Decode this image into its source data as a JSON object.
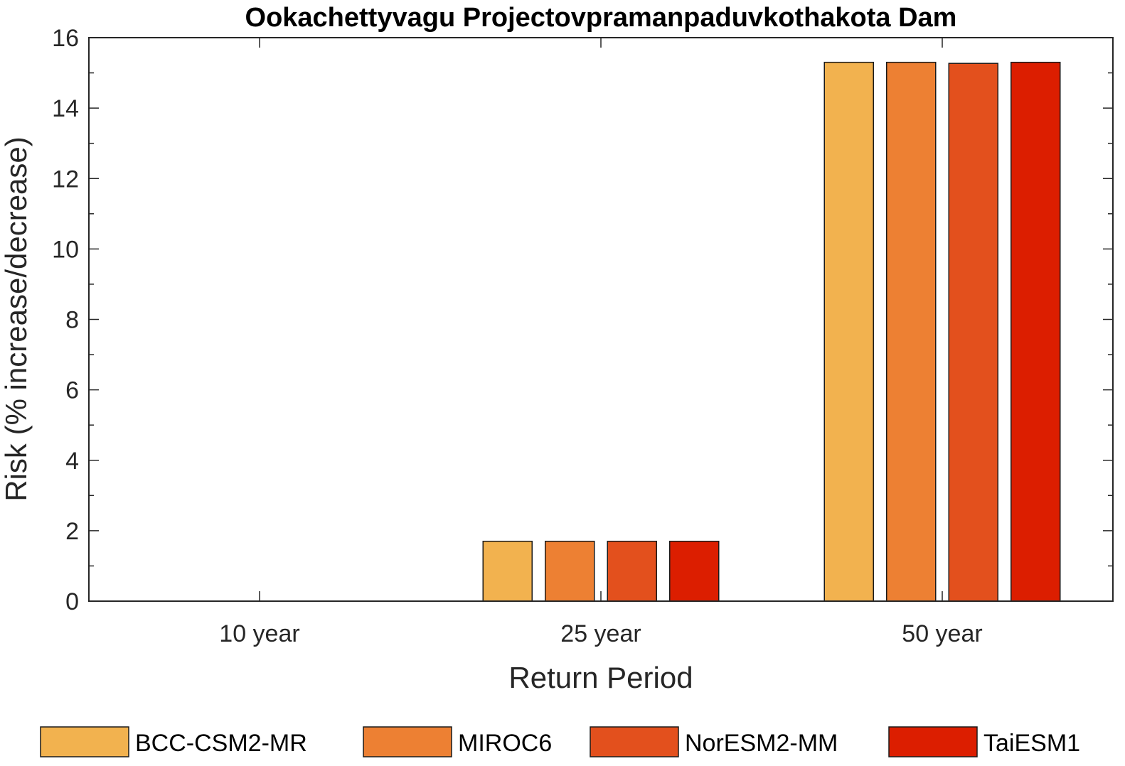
{
  "chart_data": {
    "type": "bar",
    "title": "Ookachettyvagu Projectovpramanpaduvkothakota Dam",
    "xlabel": "Return Period",
    "ylabel": "Risk (% increase/decrease)",
    "categories": [
      "10 year",
      "25 year",
      "50 year"
    ],
    "ylim": [
      0,
      16
    ],
    "yticks": [
      0,
      2,
      4,
      6,
      8,
      10,
      12,
      14,
      16
    ],
    "grid": false,
    "legend_position": "bottom",
    "series": [
      {
        "name": "BCC-CSM2-MR",
        "color": "#f2b24f",
        "values": [
          0,
          1.7,
          15.3
        ]
      },
      {
        "name": "MIROC6",
        "color": "#ed8033",
        "values": [
          0,
          1.7,
          15.3
        ]
      },
      {
        "name": "NorESM2-MM",
        "color": "#e3501d",
        "values": [
          0,
          1.7,
          15.27
        ]
      },
      {
        "name": "TaiESM1",
        "color": "#dc1e00",
        "values": [
          0,
          1.7,
          15.3
        ]
      }
    ]
  }
}
